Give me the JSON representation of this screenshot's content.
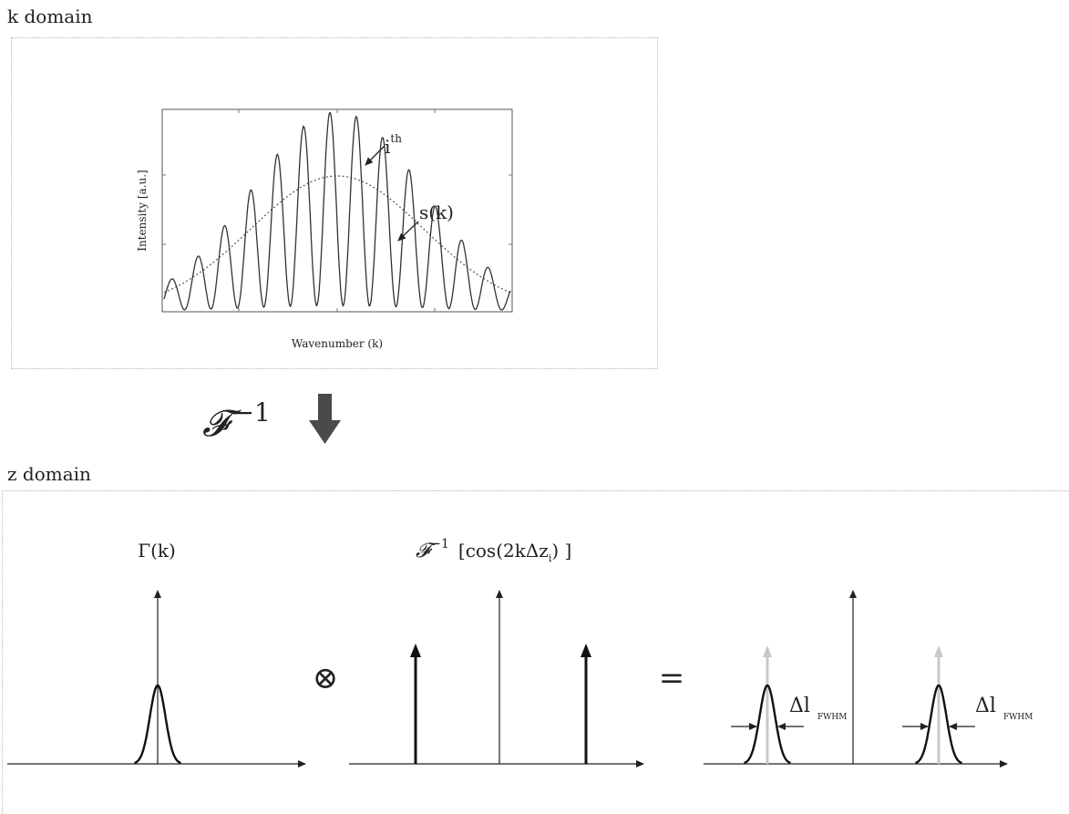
{
  "k_domain": {
    "title": "k domain",
    "chart": {
      "xlabel": "Wavenumber (k)",
      "ylabel": "Intensity [a.u.]",
      "annotations": {
        "ith_base": "i",
        "ith_sup": "th",
        "sk": "s(k)"
      }
    }
  },
  "transform": {
    "symbol": "𝓕",
    "exponent": "−1"
  },
  "z_domain": {
    "title": "z domain",
    "gamma_label": "Γ(k)",
    "cos_label": {
      "prefix_symbol": "𝓕",
      "prefix_exp": "−1",
      "body_start": "[cos(2kΔz",
      "subscript": "i",
      "body_end": ") ]"
    },
    "convolution_symbol": "⊗",
    "equals_symbol": "=",
    "fwhm_left": {
      "delta": "Δl",
      "sub": "FWHM"
    },
    "fwhm_right": {
      "delta": "Δl",
      "sub": "FWHM"
    }
  },
  "colors": {
    "line": "#222222",
    "ghost": "#c8c8c8",
    "arrow_fill": "#4a4a4a",
    "box_border": "#b5b5b5"
  }
}
